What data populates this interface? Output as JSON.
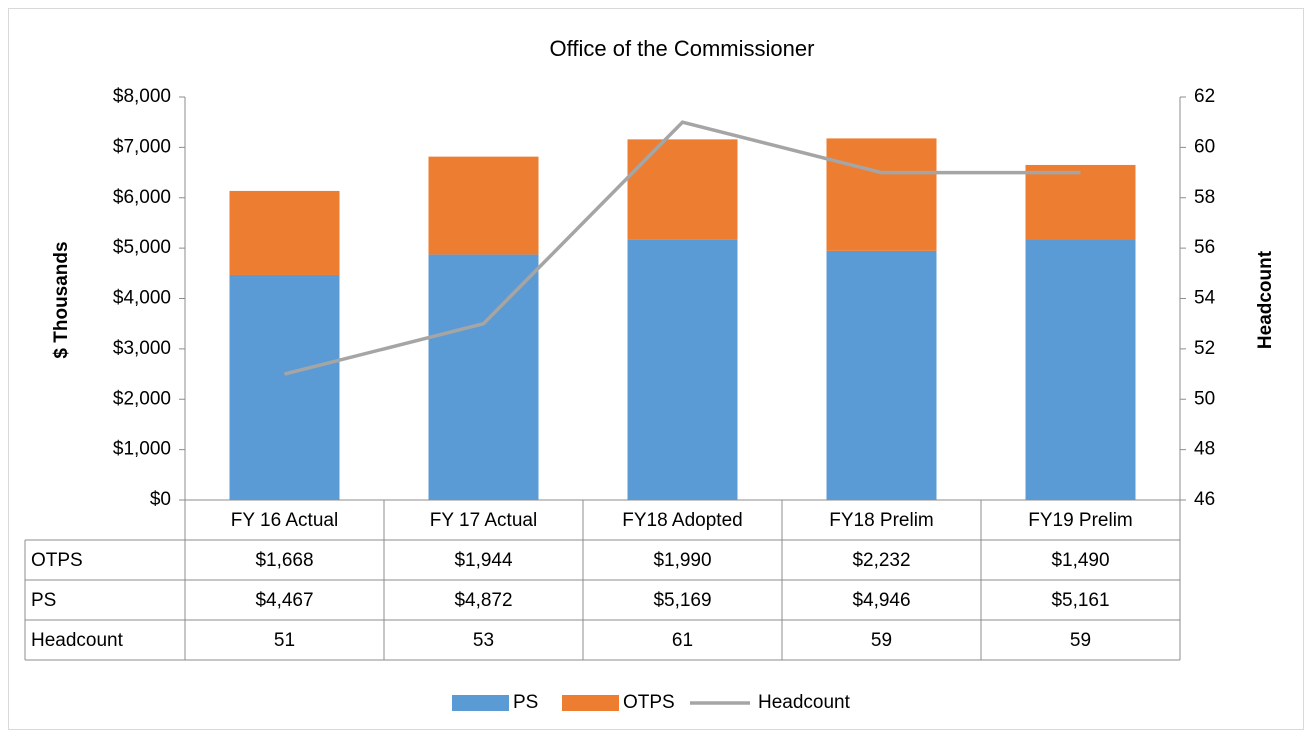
{
  "chart_data": {
    "type": "bar",
    "stacked": true,
    "title": "Office of the Commissioner",
    "ylabel": "$ Thousands",
    "y2label": "Headcount",
    "categories": [
      "FY 16 Actual",
      "FY 17 Actual",
      "FY18 Adopted",
      "FY18 Prelim",
      "FY19 Prelim"
    ],
    "series": [
      {
        "name": "PS",
        "type": "bar",
        "color": "#5b9bd5",
        "values": [
          4467,
          4872,
          5169,
          4946,
          5161
        ],
        "value_labels": [
          "$4,467",
          "$4,872",
          "$5,169",
          "$4,946",
          "$5,161"
        ]
      },
      {
        "name": "OTPS",
        "type": "bar",
        "color": "#ed7d31",
        "values": [
          1668,
          1944,
          1990,
          2232,
          1490
        ],
        "value_labels": [
          "$1,668",
          "$1,944",
          "$1,990",
          "$2,232",
          "$1,490"
        ]
      },
      {
        "name": "Headcount",
        "type": "line",
        "axis": "y2",
        "color": "#a5a5a5",
        "values": [
          51,
          53,
          61,
          59,
          59
        ]
      }
    ],
    "table_rows": [
      1,
      0,
      2
    ],
    "ylim": [
      0,
      8000
    ],
    "yticks": [
      {
        "value": 0,
        "label": "$0"
      },
      {
        "value": 1000,
        "label": "$1,000"
      },
      {
        "value": 2000,
        "label": "$2,000"
      },
      {
        "value": 3000,
        "label": "$3,000"
      },
      {
        "value": 4000,
        "label": "$4,000"
      },
      {
        "value": 5000,
        "label": "$5,000"
      },
      {
        "value": 6000,
        "label": "$6,000"
      },
      {
        "value": 7000,
        "label": "$7,000"
      },
      {
        "value": 8000,
        "label": "$8,000"
      }
    ],
    "y2lim": [
      46,
      62
    ],
    "y2ticks": [
      46,
      48,
      50,
      52,
      54,
      56,
      58,
      60,
      62
    ],
    "grid": false,
    "legend": "bottom"
  }
}
